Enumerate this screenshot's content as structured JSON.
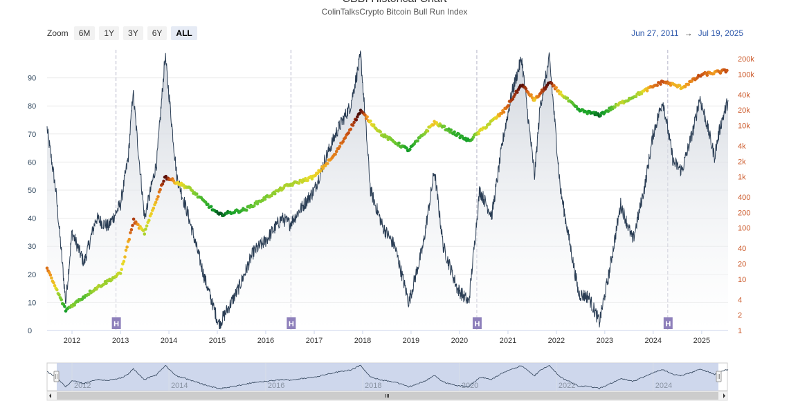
{
  "header": {
    "title": "CBBI Historical Chart",
    "subtitle": "ColinTalksCrypto Bitcoin Bull Run Index"
  },
  "zoom": {
    "label": "Zoom",
    "buttons": [
      "6M",
      "1Y",
      "3Y",
      "6Y",
      "ALL"
    ],
    "active": "ALL"
  },
  "range": {
    "from": "Jun 27, 2011",
    "arrow": "→",
    "to": "Jul 19, 2025"
  },
  "colors": {
    "index_line": "#2b3e55",
    "area_fill": "#d6dbe3",
    "halving_marker": "#8e80bb",
    "right_axis": "#cc5a2b",
    "navigator_fill": "#c9d3ea"
  },
  "chart_data": {
    "type": "line",
    "x_axis": {
      "type": "date",
      "range": [
        "2011-06-27",
        "2025-07-19"
      ],
      "tick_labels": [
        "2012",
        "2013",
        "2014",
        "2015",
        "2016",
        "2017",
        "2018",
        "2019",
        "2020",
        "2021",
        "2022",
        "2023",
        "2024",
        "2025"
      ]
    },
    "y_left": {
      "range": [
        0,
        100
      ],
      "tick_labels": [
        "0",
        "10",
        "20",
        "30",
        "40",
        "50",
        "60",
        "70",
        "80",
        "90"
      ]
    },
    "y_right": {
      "scale": "log",
      "range": [
        1,
        300000
      ],
      "tick_labels": [
        "1",
        "2",
        "4",
        "10",
        "20",
        "40",
        "100",
        "200",
        "400",
        "1k",
        "2k",
        "4k",
        "10k",
        "20k",
        "40k",
        "100k",
        "200k"
      ]
    },
    "grid": true,
    "halvings": {
      "label": "H",
      "dates": [
        "2012-11-28",
        "2016-07-09",
        "2020-05-11",
        "2024-04-20"
      ]
    },
    "series": [
      {
        "axis": "left",
        "x": [
          "2011-06-27",
          "2011-09-01",
          "2011-11-15",
          "2012-01-01",
          "2012-04-01",
          "2012-07-01",
          "2012-10-01",
          "2013-01-01",
          "2013-03-01",
          "2013-04-05",
          "2013-07-01",
          "2013-10-01",
          "2013-12-04",
          "2014-03-01",
          "2014-06-01",
          "2014-10-01",
          "2015-01-14",
          "2015-06-01",
          "2015-10-01",
          "2016-01-01",
          "2016-05-01",
          "2016-07-01",
          "2016-10-01",
          "2017-01-01",
          "2017-04-01",
          "2017-07-01",
          "2017-10-01",
          "2017-12-17",
          "2018-03-01",
          "2018-06-01",
          "2018-09-01",
          "2018-12-15",
          "2019-04-01",
          "2019-06-26",
          "2019-09-01",
          "2019-12-15",
          "2020-03-12",
          "2020-06-01",
          "2020-09-01",
          "2020-12-01",
          "2021-02-01",
          "2021-04-14",
          "2021-07-20",
          "2021-09-01",
          "2021-11-10",
          "2022-02-01",
          "2022-06-18",
          "2022-09-01",
          "2022-11-21",
          "2023-02-01",
          "2023-05-01",
          "2023-08-01",
          "2023-11-01",
          "2024-01-01",
          "2024-03-14",
          "2024-06-01",
          "2024-08-05",
          "2024-11-01",
          "2024-12-17",
          "2025-02-01",
          "2025-04-07",
          "2025-05-22",
          "2025-07-19"
        ],
        "values": [
          72,
          50,
          10,
          35,
          24,
          40,
          37,
          45,
          62,
          85,
          40,
          60,
          98,
          55,
          40,
          18,
          2,
          14,
          28,
          32,
          40,
          38,
          44,
          50,
          62,
          72,
          80,
          98,
          50,
          37,
          30,
          10,
          30,
          57,
          30,
          15,
          10,
          50,
          41,
          70,
          85,
          97,
          55,
          80,
          97,
          50,
          13,
          12,
          3,
          20,
          45,
          32,
          52,
          70,
          82,
          60,
          57,
          72,
          83,
          75,
          62,
          73,
          82
        ]
      },
      {
        "axis": "right",
        "x": [
          "2011-06-27",
          "2011-11-15",
          "2012-06-01",
          "2013-01-01",
          "2013-04-10",
          "2013-07-01",
          "2013-12-01",
          "2014-06-01",
          "2015-01-14",
          "2015-08-01",
          "2016-06-01",
          "2017-01-01",
          "2017-06-01",
          "2017-12-17",
          "2018-06-01",
          "2018-12-15",
          "2019-06-26",
          "2020-03-12",
          "2020-12-01",
          "2021-04-14",
          "2021-07-20",
          "2021-11-10",
          "2022-06-18",
          "2022-11-21",
          "2023-06-01",
          "2024-03-14",
          "2024-08-05",
          "2025-01-01",
          "2025-07-19"
        ],
        "values": [
          16,
          2.5,
          6,
          13,
          140,
          80,
          1000,
          600,
          180,
          230,
          650,
          1000,
          2600,
          19000,
          6500,
          3300,
          11500,
          5000,
          19000,
          63000,
          31000,
          68000,
          20000,
          16000,
          30000,
          72000,
          55000,
          98000,
          118000
        ]
      }
    ]
  }
}
